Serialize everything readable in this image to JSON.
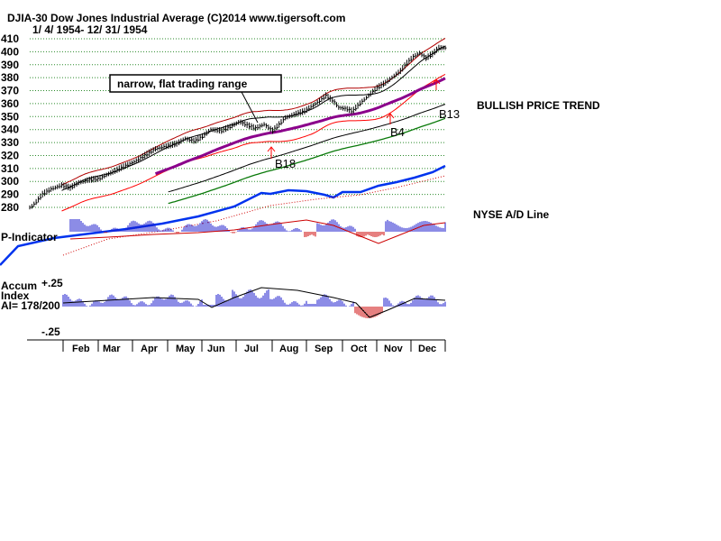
{
  "chart_data": {
    "type": "line",
    "title": "DJIA-30  Dow Jones Industrial Average   (C)2014 www.tigersoft.com",
    "subtitle": "1/ 4/ 1954- 12/ 31/ 1954",
    "y_ticks": [
      "410",
      "400",
      "390",
      "380",
      "370",
      "360",
      "350",
      "340",
      "330",
      "320",
      "310",
      "300",
      "290",
      "280"
    ],
    "ylim": [
      280,
      410
    ],
    "months": [
      "Feb",
      "Mar",
      "Apr",
      "May",
      "Jun",
      "Jul",
      "Aug",
      "Sep",
      "Oct",
      "Nov",
      "Dec"
    ],
    "price": [
      [
        1,
        280
      ],
      [
        5,
        283
      ],
      [
        12,
        290
      ],
      [
        20,
        294
      ],
      [
        30,
        297
      ],
      [
        38,
        295
      ],
      [
        46,
        299
      ],
      [
        55,
        301
      ],
      [
        65,
        302
      ],
      [
        72,
        305
      ],
      [
        80,
        308
      ],
      [
        90,
        312
      ],
      [
        100,
        316
      ],
      [
        108,
        320
      ],
      [
        118,
        325
      ],
      [
        128,
        327
      ],
      [
        138,
        329
      ],
      [
        146,
        333
      ],
      [
        155,
        331
      ],
      [
        163,
        335
      ],
      [
        170,
        340
      ],
      [
        180,
        339
      ],
      [
        188,
        342
      ],
      [
        197,
        346
      ],
      [
        205,
        343
      ],
      [
        212,
        341
      ],
      [
        220,
        344
      ],
      [
        228,
        339
      ],
      [
        232,
        342
      ],
      [
        240,
        349
      ],
      [
        250,
        352
      ],
      [
        258,
        354
      ],
      [
        265,
        358
      ],
      [
        272,
        362
      ],
      [
        278,
        366
      ],
      [
        285,
        362
      ],
      [
        290,
        357
      ],
      [
        297,
        356
      ],
      [
        303,
        354
      ],
      [
        310,
        360
      ],
      [
        318,
        366
      ],
      [
        326,
        372
      ],
      [
        334,
        376
      ],
      [
        340,
        380
      ],
      [
        348,
        385
      ],
      [
        354,
        391
      ],
      [
        360,
        396
      ],
      [
        366,
        399
      ],
      [
        372,
        395
      ],
      [
        378,
        398
      ],
      [
        384,
        403
      ]
    ],
    "annotations": [
      {
        "text": "narrow, flat trading range"
      },
      {
        "text": "BULLISH PRICE TREND"
      },
      {
        "text": "B13"
      },
      {
        "text": "B4"
      },
      {
        "text": "B18"
      }
    ],
    "panels": [
      {
        "name": "NYSE A/D Line"
      },
      {
        "name": "P-Indicator"
      },
      {
        "name": "Accum Index",
        "reading": "AI= 178/200",
        "ticks": [
          "+.25",
          "-.25"
        ]
      }
    ]
  }
}
